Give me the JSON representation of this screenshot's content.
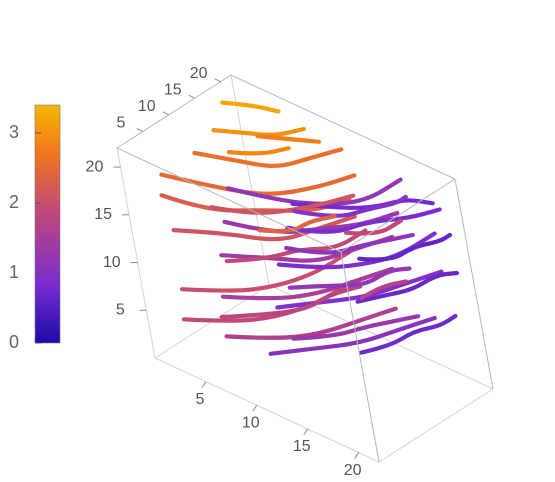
{
  "chart_data": {
    "type": "3d-streamlines",
    "title": "",
    "axes": {
      "x": {
        "range": [
          0,
          22
        ],
        "ticks": [
          "5",
          "10",
          "15",
          "20"
        ]
      },
      "y": {
        "range": [
          0,
          22
        ],
        "ticks": [
          "5",
          "10",
          "15",
          "20"
        ]
      },
      "z": {
        "range": [
          0,
          22
        ],
        "ticks": [
          "5",
          "10",
          "15",
          "20"
        ]
      }
    },
    "colorbar": {
      "range": [
        0,
        3.4
      ],
      "ticks": [
        "0",
        "1",
        "2",
        "3"
      ],
      "colors": [
        "#1d0aa8",
        "#7a2dd1",
        "#c0477a",
        "#f2761e",
        "#f5b800"
      ]
    },
    "grid": false,
    "streamlines": [
      {
        "points": [
          [
            2,
            3,
            4
          ],
          [
            6,
            5,
            5
          ],
          [
            9,
            8,
            6
          ],
          [
            11,
            12,
            7
          ],
          [
            12,
            17,
            8
          ]
        ],
        "value": 1.9
      },
      {
        "points": [
          [
            3,
            2,
            8
          ],
          [
            7,
            4,
            9
          ],
          [
            10,
            7,
            10
          ],
          [
            12,
            11,
            11
          ],
          [
            13,
            16,
            12
          ]
        ],
        "value": 2.0
      },
      {
        "points": [
          [
            2,
            4,
            13
          ],
          [
            6,
            6,
            14
          ],
          [
            10,
            9,
            14
          ],
          [
            12,
            13,
            15
          ],
          [
            13,
            18,
            15
          ]
        ],
        "value": 2.1
      },
      {
        "points": [
          [
            2,
            3,
            17
          ],
          [
            6,
            4,
            17
          ],
          [
            10,
            7,
            18
          ],
          [
            13,
            11,
            18
          ],
          [
            14,
            16,
            18
          ]
        ],
        "value": 2.3
      },
      {
        "points": [
          [
            3,
            2,
            20
          ],
          [
            7,
            4,
            20
          ],
          [
            11,
            7,
            20
          ],
          [
            14,
            11,
            21
          ],
          [
            15,
            16,
            21
          ]
        ],
        "value": 2.5
      },
      {
        "points": [
          [
            5,
            5,
            3
          ],
          [
            9,
            7,
            4
          ],
          [
            12,
            10,
            5
          ],
          [
            14,
            14,
            6
          ],
          [
            15,
            19,
            6
          ]
        ],
        "value": 1.6
      },
      {
        "points": [
          [
            6,
            4,
            8
          ],
          [
            10,
            6,
            9
          ],
          [
            13,
            9,
            10
          ],
          [
            15,
            13,
            11
          ],
          [
            16,
            18,
            11
          ]
        ],
        "value": 1.5
      },
      {
        "points": [
          [
            6,
            5,
            12
          ],
          [
            10,
            7,
            13
          ],
          [
            13,
            10,
            13
          ],
          [
            15,
            14,
            14
          ],
          [
            16,
            19,
            14
          ]
        ],
        "value": 1.4
      },
      {
        "points": [
          [
            7,
            5,
            16
          ],
          [
            11,
            7,
            16
          ],
          [
            14,
            10,
            17
          ],
          [
            16,
            14,
            17
          ],
          [
            17,
            19,
            17
          ]
        ],
        "value": 1.3
      },
      {
        "points": [
          [
            8,
            5,
            20
          ],
          [
            12,
            7,
            20
          ],
          [
            15,
            10,
            20
          ],
          [
            17,
            14,
            20
          ],
          [
            18,
            19,
            21
          ]
        ],
        "value": 1.2
      },
      {
        "points": [
          [
            10,
            4,
            4
          ],
          [
            13,
            7,
            5
          ],
          [
            16,
            10,
            6
          ],
          [
            18,
            14,
            7
          ],
          [
            19,
            19,
            7
          ]
        ],
        "value": 1.05
      },
      {
        "points": [
          [
            11,
            5,
            9
          ],
          [
            14,
            8,
            10
          ],
          [
            17,
            11,
            11
          ],
          [
            19,
            15,
            12
          ],
          [
            20,
            20,
            12
          ]
        ],
        "value": 0.95
      },
      {
        "points": [
          [
            12,
            5,
            14
          ],
          [
            15,
            8,
            14
          ],
          [
            18,
            11,
            15
          ],
          [
            19,
            15,
            15
          ],
          [
            20,
            20,
            16
          ]
        ],
        "value": 0.9
      },
      {
        "points": [
          [
            13,
            6,
            18
          ],
          [
            16,
            8,
            18
          ],
          [
            18,
            12,
            19
          ],
          [
            20,
            16,
            19
          ],
          [
            21,
            20,
            19
          ]
        ],
        "value": 0.85
      },
      {
        "points": [
          [
            14,
            6,
            21
          ],
          [
            17,
            9,
            21
          ],
          [
            19,
            12,
            21
          ],
          [
            20,
            16,
            21
          ],
          [
            21,
            19,
            20
          ]
        ],
        "value": 0.8
      },
      {
        "points": [
          [
            3,
            8,
            3
          ],
          [
            6,
            10,
            4
          ],
          [
            9,
            13,
            5
          ],
          [
            10,
            16,
            6
          ],
          [
            11,
            20,
            6
          ]
        ],
        "value": 1.8
      },
      {
        "points": [
          [
            4,
            9,
            9
          ],
          [
            7,
            11,
            10
          ],
          [
            9,
            14,
            11
          ],
          [
            11,
            17,
            11
          ],
          [
            12,
            21,
            12
          ]
        ],
        "value": 1.9
      },
      {
        "points": [
          [
            4,
            8,
            15
          ],
          [
            7,
            10,
            15
          ],
          [
            10,
            13,
            16
          ],
          [
            11,
            16,
            16
          ],
          [
            12,
            20,
            16
          ]
        ],
        "value": 2.1
      },
      {
        "points": [
          [
            2,
            10,
            19
          ],
          [
            5,
            12,
            19
          ],
          [
            8,
            14,
            19
          ],
          [
            10,
            17,
            20
          ],
          [
            11,
            21,
            20
          ]
        ],
        "value": 2.6
      },
      {
        "points": [
          [
            9,
            10,
            3
          ],
          [
            12,
            12,
            4
          ],
          [
            14,
            15,
            5
          ],
          [
            15,
            18,
            5
          ],
          [
            16,
            21,
            5
          ]
        ],
        "value": 1.3
      },
      {
        "points": [
          [
            9,
            11,
            8
          ],
          [
            12,
            13,
            9
          ],
          [
            14,
            16,
            9
          ],
          [
            15,
            19,
            10
          ],
          [
            16,
            21,
            10
          ]
        ],
        "value": 1.2
      },
      {
        "points": [
          [
            10,
            10,
            13
          ],
          [
            13,
            12,
            13
          ],
          [
            15,
            15,
            14
          ],
          [
            16,
            18,
            14
          ],
          [
            17,
            21,
            14
          ]
        ],
        "value": 1.15
      },
      {
        "points": [
          [
            11,
            11,
            17
          ],
          [
            14,
            13,
            17
          ],
          [
            16,
            16,
            18
          ],
          [
            17,
            19,
            18
          ],
          [
            17,
            21,
            18
          ]
        ],
        "value": 1.0
      },
      {
        "points": [
          [
            16,
            10,
            5
          ],
          [
            18,
            12,
            6
          ],
          [
            19,
            15,
            7
          ],
          [
            20,
            18,
            7
          ],
          [
            20,
            21,
            7
          ]
        ],
        "value": 0.75
      },
      {
        "points": [
          [
            16,
            11,
            10
          ],
          [
            18,
            13,
            11
          ],
          [
            19,
            16,
            11
          ],
          [
            20,
            19,
            12
          ],
          [
            21,
            21,
            12
          ]
        ],
        "value": 0.7
      },
      {
        "points": [
          [
            17,
            11,
            15
          ],
          [
            19,
            13,
            15
          ],
          [
            20,
            16,
            16
          ],
          [
            21,
            19,
            16
          ],
          [
            21,
            21,
            16
          ]
        ],
        "value": 0.65
      },
      {
        "points": [
          [
            2,
            14,
            20
          ],
          [
            4,
            16,
            20
          ],
          [
            6,
            18,
            20
          ],
          [
            8,
            20,
            21
          ]
        ],
        "value": 3.0
      },
      {
        "points": [
          [
            2,
            16,
            17
          ],
          [
            4,
            18,
            17
          ],
          [
            6,
            20,
            18
          ]
        ],
        "value": 2.9
      },
      {
        "points": [
          [
            6,
            15,
            21
          ],
          [
            8,
            17,
            21
          ],
          [
            10,
            19,
            21
          ]
        ],
        "value": 2.8
      },
      {
        "points": [
          [
            1,
            18,
            21
          ],
          [
            3,
            20,
            21
          ],
          [
            5,
            21,
            21
          ]
        ],
        "value": 3.2
      },
      {
        "points": [
          [
            5,
            14,
            11
          ],
          [
            7,
            16,
            11
          ],
          [
            8,
            18,
            12
          ],
          [
            9,
            21,
            12
          ]
        ],
        "value": 2.4
      },
      {
        "points": [
          [
            14,
            15,
            8
          ],
          [
            15,
            17,
            9
          ],
          [
            16,
            20,
            9
          ]
        ],
        "value": 1.7
      },
      {
        "points": [
          [
            13,
            16,
            14
          ],
          [
            15,
            18,
            14
          ],
          [
            16,
            21,
            15
          ]
        ],
        "value": 1.9
      }
    ]
  }
}
